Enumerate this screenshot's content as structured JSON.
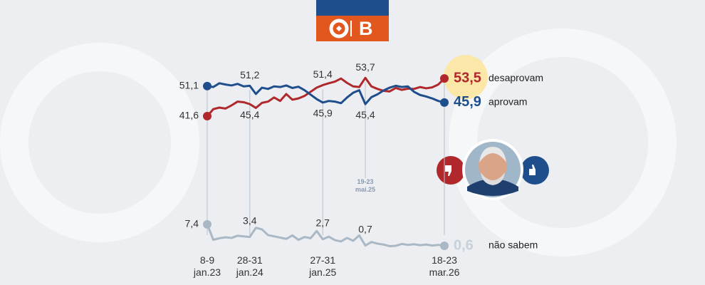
{
  "logo_text": "B",
  "chart_data": {
    "type": "line",
    "categories": [
      "8-9\njan.23",
      null,
      null,
      null,
      null,
      null,
      null,
      "28-31\njan.24",
      null,
      null,
      null,
      null,
      null,
      null,
      null,
      null,
      null,
      null,
      null,
      "27-31\njan.25",
      null,
      null,
      null,
      null,
      null,
      null,
      "19-23\nmai.25",
      null,
      null,
      null,
      null,
      null,
      null,
      null,
      null,
      null,
      null,
      null,
      null,
      "18-23\nmar.26"
    ],
    "ylim": [
      0,
      60
    ],
    "series": [
      {
        "name": "desaprovam",
        "color": "#b0282b",
        "values": [
          41.6,
          43.8,
          44.3,
          44.0,
          45.0,
          46.2,
          46.0,
          45.4,
          44.2,
          45.8,
          46.2,
          47.5,
          46.4,
          48.6,
          46.8,
          47.2,
          48.0,
          49.3,
          50.6,
          51.4,
          52.0,
          52.5,
          53.5,
          52.1,
          51.0,
          50.8,
          53.7,
          51.0,
          50.2,
          49.6,
          49.4,
          50.5,
          49.9,
          50.3,
          50.2,
          50.8,
          50.4,
          50.7,
          51.6,
          53.5
        ],
        "value_labels": [
          "41,6",
          null,
          null,
          null,
          null,
          null,
          null,
          "45,4",
          null,
          null,
          null,
          null,
          null,
          null,
          null,
          null,
          null,
          null,
          null,
          "51,4",
          null,
          null,
          null,
          null,
          null,
          null,
          "53,7",
          null,
          null,
          null,
          null,
          null,
          null,
          null,
          null,
          null,
          null,
          null,
          null,
          "53,5"
        ]
      },
      {
        "name": "aprovam",
        "color": "#1f4e8c",
        "values": [
          51.1,
          50.8,
          52.0,
          51.6,
          51.3,
          51.8,
          51.0,
          51.2,
          48.6,
          50.6,
          50.2,
          51.0,
          50.8,
          51.3,
          50.5,
          50.9,
          49.8,
          48.4,
          47.0,
          45.9,
          46.4,
          46.2,
          45.7,
          47.5,
          49.0,
          49.8,
          45.4,
          47.6,
          48.5,
          49.7,
          50.6,
          51.2,
          50.8,
          51.0,
          49.3,
          48.3,
          47.8,
          47.2,
          46.4,
          45.9
        ],
        "value_labels": [
          "51,1",
          null,
          null,
          null,
          null,
          null,
          null,
          "51,2",
          null,
          null,
          null,
          null,
          null,
          null,
          null,
          null,
          null,
          null,
          null,
          "45,9",
          null,
          null,
          null,
          null,
          null,
          null,
          "45,4",
          null,
          null,
          null,
          null,
          null,
          null,
          null,
          null,
          null,
          null,
          null,
          null,
          "45,9"
        ]
      },
      {
        "name": "não sabem",
        "color": "#aab8c5",
        "values": [
          7.4,
          2.5,
          3.0,
          3.3,
          3.1,
          3.8,
          3.6,
          3.4,
          6.3,
          5.8,
          4.0,
          3.6,
          3.2,
          2.8,
          3.9,
          2.5,
          3.4,
          3.0,
          5.3,
          2.7,
          3.5,
          2.4,
          2.0,
          3.1,
          2.2,
          3.9,
          0.7,
          1.8,
          1.3,
          1.0,
          0.5,
          0.6,
          1.2,
          0.9,
          1.1,
          0.8,
          1.0,
          0.7,
          0.9,
          0.6
        ],
        "value_labels": [
          "7,4",
          null,
          null,
          null,
          null,
          null,
          null,
          "3,4",
          null,
          null,
          null,
          null,
          null,
          null,
          null,
          null,
          null,
          null,
          null,
          "2,7",
          null,
          null,
          null,
          null,
          null,
          null,
          "0,7",
          null,
          null,
          null,
          null,
          null,
          null,
          null,
          null,
          null,
          null,
          null,
          null,
          "0,6"
        ]
      }
    ]
  }
}
